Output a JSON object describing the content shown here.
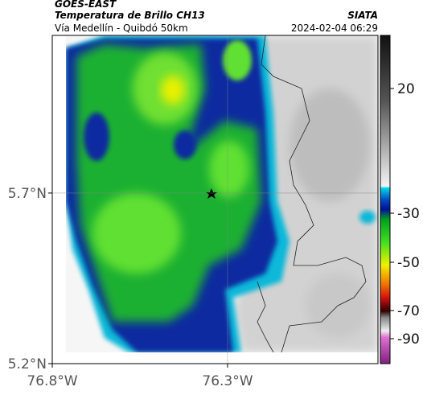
{
  "header": {
    "product": "GOES-EAST",
    "title": "Temperatura de Brillo CH13",
    "subtitle": "Vía Medellín - Quibdó 50km",
    "brand": "SIATA",
    "timestamp": "2024-02-04 06:29"
  },
  "map": {
    "xlim": [
      -76.8,
      -75.871
    ],
    "ylim": [
      5.2,
      6.162
    ],
    "xticks": [
      {
        "value": -76.8,
        "label": "76.8°W"
      },
      {
        "value": -76.3,
        "label": "76.3°W"
      }
    ],
    "yticks": [
      {
        "value": 5.7,
        "label": "5.7°N"
      },
      {
        "value": 5.2,
        "label": "5.2°N"
      }
    ]
  },
  "colorbar": {
    "ticks": [
      20,
      -30,
      -50,
      -70,
      -90
    ]
  }
}
